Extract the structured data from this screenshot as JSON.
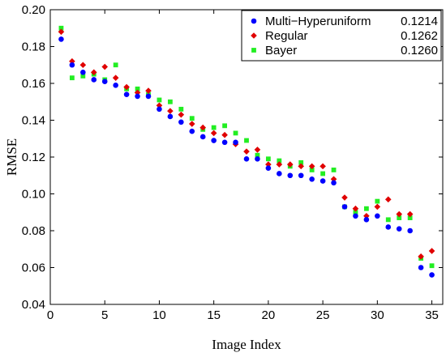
{
  "chart_data": {
    "type": "scatter",
    "xlabel": "Image Index",
    "ylabel": "RMSE",
    "xlim": [
      0,
      36
    ],
    "ylim": [
      0.04,
      0.2
    ],
    "xticks": [
      0,
      5,
      10,
      15,
      20,
      25,
      30,
      35
    ],
    "yticks": [
      0.04,
      0.06,
      0.08,
      0.1,
      0.12,
      0.14,
      0.16,
      0.18,
      0.2
    ],
    "xtick_labels": [
      "0",
      "5",
      "10",
      "15",
      "20",
      "25",
      "30",
      "35"
    ],
    "ytick_labels": [
      "0.04",
      "0.06",
      "0.08",
      "0.10",
      "0.12",
      "0.14",
      "0.16",
      "0.18",
      "0.20"
    ],
    "grid": false,
    "legend_position": "top-right",
    "x": [
      1,
      2,
      3,
      4,
      5,
      6,
      7,
      8,
      9,
      10,
      11,
      12,
      13,
      14,
      15,
      16,
      17,
      18,
      19,
      20,
      21,
      22,
      23,
      24,
      25,
      26,
      27,
      28,
      29,
      30,
      31,
      32,
      33,
      34,
      35
    ],
    "series": [
      {
        "name": "Multi−Hyperuniform",
        "legend_value": "0.1214",
        "marker": "circle",
        "color": "#0000ff",
        "values": [
          0.184,
          0.17,
          0.166,
          0.162,
          0.161,
          0.159,
          0.154,
          0.153,
          0.153,
          0.146,
          0.142,
          0.139,
          0.134,
          0.131,
          0.129,
          0.128,
          0.128,
          0.119,
          0.119,
          0.114,
          0.111,
          0.11,
          0.11,
          0.108,
          0.107,
          0.106,
          0.093,
          0.088,
          0.086,
          0.088,
          0.082,
          0.081,
          0.08,
          0.06,
          0.056
        ]
      },
      {
        "name": "Regular",
        "legend_value": "0.1262",
        "marker": "diamond",
        "color": "#e00000",
        "values": [
          0.188,
          0.172,
          0.17,
          0.166,
          0.169,
          0.163,
          0.158,
          0.155,
          0.156,
          0.148,
          0.145,
          0.143,
          0.138,
          0.136,
          0.133,
          0.132,
          0.127,
          0.123,
          0.124,
          0.116,
          0.116,
          0.116,
          0.115,
          0.115,
          0.115,
          0.108,
          0.098,
          0.092,
          0.088,
          0.093,
          0.097,
          0.089,
          0.089,
          0.066,
          0.069
        ]
      },
      {
        "name": "Bayer",
        "legend_value": "0.1260",
        "marker": "square",
        "color": "#22ee22",
        "values": [
          0.19,
          0.163,
          0.164,
          0.165,
          0.162,
          0.17,
          0.157,
          0.157,
          0.154,
          0.151,
          0.15,
          0.146,
          0.141,
          0.135,
          0.136,
          0.137,
          0.133,
          0.129,
          0.121,
          0.119,
          0.118,
          0.115,
          0.117,
          0.113,
          0.111,
          0.113,
          0.093,
          0.09,
          0.092,
          0.096,
          0.086,
          0.087,
          0.087,
          0.065,
          0.061
        ]
      }
    ]
  }
}
